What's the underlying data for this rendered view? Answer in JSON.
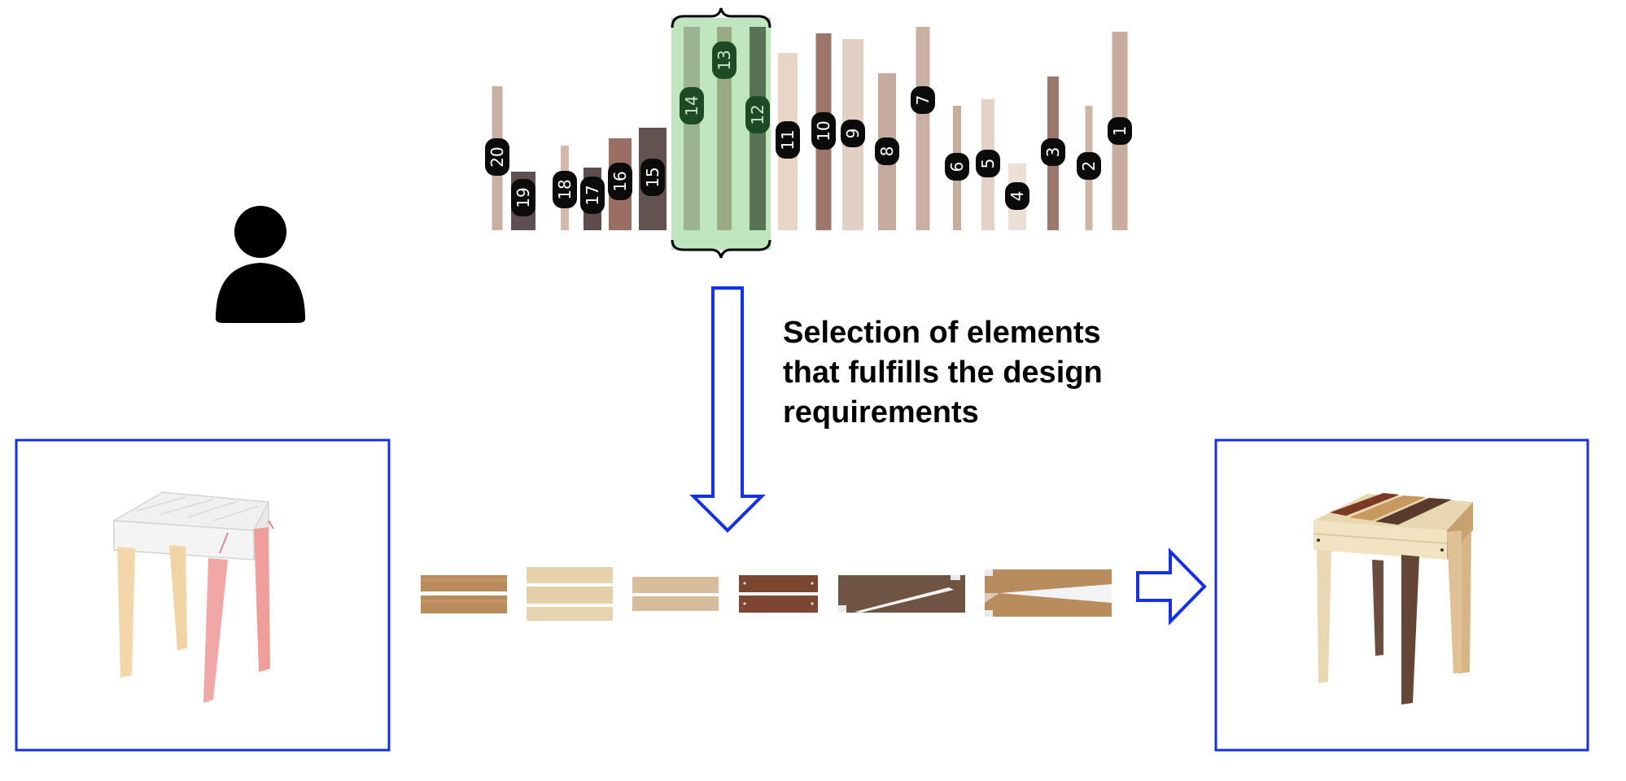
{
  "caption": {
    "line1": "Selection of elements",
    "line2": "that fulfills the design",
    "line3": "requirements"
  },
  "colors": {
    "blue": "#1331e6",
    "selection_fill": "#bfe6bc",
    "label_bg": "#0b0b0b",
    "label_bg_selected": "#1f4a26",
    "label_text": "#ffffff",
    "label_text_selected": "#c8e8c2"
  },
  "inventory": {
    "selected": [
      "14",
      "13",
      "12"
    ],
    "elements": [
      {
        "id": "20",
        "length": 177,
        "color": "#c9b0a2"
      },
      {
        "id": "19",
        "length": 72,
        "color": "#5f4f52"
      },
      {
        "id": "18",
        "length": 104,
        "color": "#d3b9ab"
      },
      {
        "id": "17",
        "length": 77,
        "color": "#5e4c4e"
      },
      {
        "id": "16",
        "length": 113,
        "color": "#9b6e64"
      },
      {
        "id": "15",
        "length": 126,
        "color": "#63524f"
      },
      {
        "id": "14",
        "length": 250,
        "color": "#9bb38e"
      },
      {
        "id": "13",
        "length": 250,
        "color": "#9aaa84"
      },
      {
        "id": "12",
        "length": 250,
        "color": "#587256"
      },
      {
        "id": "11",
        "length": 218,
        "color": "#e7d5c8"
      },
      {
        "id": "10",
        "length": 242,
        "color": "#9c756b"
      },
      {
        "id": "9",
        "length": 235,
        "color": "#e2d0c5"
      },
      {
        "id": "8",
        "length": 193,
        "color": "#c6aaa0"
      },
      {
        "id": "7",
        "length": 250,
        "color": "#c9b0a2"
      },
      {
        "id": "6",
        "length": 153,
        "color": "#c6ad9c"
      },
      {
        "id": "5",
        "length": 161,
        "color": "#e4d2c6"
      },
      {
        "id": "4",
        "length": 82,
        "color": "#ece0d6"
      },
      {
        "id": "3",
        "length": 189,
        "color": "#9d766c"
      },
      {
        "id": "2",
        "length": 153,
        "color": "#cdb5a6"
      },
      {
        "id": "1",
        "length": 244,
        "color": "#c8ad9f"
      }
    ]
  },
  "parts": [
    {
      "name": "part-pair-1",
      "color": "#b98a5a"
    },
    {
      "name": "part-triple-2",
      "color": "#e3cfa8"
    },
    {
      "name": "part-pair-3",
      "color": "#d7bc9c"
    },
    {
      "name": "part-pair-4",
      "color": "#7a4630"
    },
    {
      "name": "part-split-5",
      "color": "#6f5442"
    },
    {
      "name": "part-split-6",
      "color": "#b98c5e"
    }
  ]
}
